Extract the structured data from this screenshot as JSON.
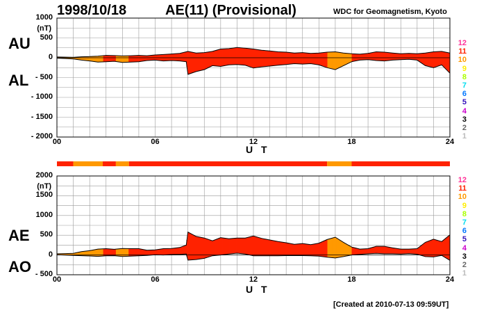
{
  "header": {
    "date": "1998/10/18",
    "index_name": "AE(11) (Provisional)",
    "institution": "WDC for Geomagnetism, Kyoto"
  },
  "footer": {
    "created": "[Created at 2010-07-13 09:59UT]"
  },
  "level_colors": {
    "12": "#ff3399",
    "11": "#ff2200",
    "10": "#ff9900",
    "9": "#ffee00",
    "8": "#aaff00",
    "7": "#00ddee",
    "6": "#0077ff",
    "5": "#3311bb",
    "4": "#cc00cc",
    "3": "#000000",
    "2": "#666666",
    "1": "#bbbbbb"
  },
  "chart_data": [
    {
      "type": "area",
      "panel": "upper",
      "series_labels": [
        "AU",
        "AL"
      ],
      "x_tick_labels": [
        "00",
        "06",
        "12",
        "18",
        "24"
      ],
      "xlabel": "U T",
      "xlim": [
        0,
        24
      ],
      "y_tick_labels": [
        "1000",
        "500",
        "0",
        "- 500",
        "- 1000",
        "- 1500",
        "- 2000"
      ],
      "yunit": "(nT)",
      "ylim": [
        -2000,
        1000
      ],
      "grid": true,
      "level_legend": [
        "12",
        "11",
        "10",
        "9",
        "8",
        "7",
        "6",
        "5",
        "4",
        "3",
        "2",
        "1"
      ],
      "x": [
        0,
        0.5,
        1,
        1.5,
        2,
        2.5,
        3,
        3.5,
        4,
        4.5,
        5,
        5.5,
        6,
        6.5,
        7,
        7.5,
        7.9,
        8,
        8.5,
        9,
        9.5,
        10,
        10.5,
        11,
        11.5,
        12,
        12.5,
        13,
        13.5,
        14,
        14.5,
        15,
        15.5,
        16,
        16.5,
        17,
        17.5,
        18,
        18.5,
        19,
        19.5,
        20,
        20.5,
        21,
        21.5,
        22,
        22.5,
        23,
        23.5,
        24
      ],
      "AU": [
        20,
        15,
        10,
        25,
        30,
        40,
        60,
        55,
        45,
        50,
        60,
        50,
        70,
        80,
        95,
        110,
        150,
        160,
        120,
        130,
        160,
        220,
        230,
        260,
        240,
        220,
        190,
        170,
        150,
        140,
        120,
        130,
        110,
        120,
        140,
        150,
        120,
        100,
        90,
        110,
        150,
        140,
        120,
        100,
        110,
        100,
        120,
        150,
        160,
        120
      ],
      "AL": [
        -10,
        -20,
        -30,
        -60,
        -80,
        -110,
        -100,
        -90,
        -120,
        -110,
        -100,
        -70,
        -60,
        -80,
        -70,
        -80,
        -100,
        -420,
        -350,
        -300,
        -200,
        -220,
        -180,
        -170,
        -190,
        -260,
        -230,
        -210,
        -190,
        -170,
        -150,
        -160,
        -150,
        -180,
        -250,
        -300,
        -200,
        -100,
        -60,
        -50,
        -70,
        -80,
        -60,
        -50,
        -40,
        -60,
        -200,
        -250,
        -180,
        -390
      ]
    },
    {
      "type": "area",
      "panel": "lower",
      "series_labels": [
        "AE",
        "AO"
      ],
      "x_tick_labels": [
        "00",
        "06",
        "12",
        "18",
        "24"
      ],
      "xlabel": "U T",
      "xlim": [
        0,
        24
      ],
      "y_tick_labels": [
        "2000",
        "1500",
        "1000",
        "500",
        "0",
        "- 500"
      ],
      "yunit": "(nT)",
      "ylim": [
        -500,
        2000
      ],
      "grid": true,
      "level_legend": [
        "12",
        "11",
        "10",
        "9",
        "8",
        "7",
        "6",
        "5",
        "4",
        "3",
        "2",
        "1"
      ],
      "x": [
        0,
        0.5,
        1,
        1.5,
        2,
        2.5,
        3,
        3.5,
        4,
        4.5,
        5,
        5.5,
        6,
        6.5,
        7,
        7.5,
        7.9,
        8,
        8.5,
        9,
        9.5,
        10,
        10.5,
        11,
        11.5,
        12,
        12.5,
        13,
        13.5,
        14,
        14.5,
        15,
        15.5,
        16,
        16.5,
        17,
        17.5,
        18,
        18.5,
        19,
        19.5,
        20,
        20.5,
        21,
        21.5,
        22,
        22.5,
        23,
        23.5,
        24
      ],
      "AE": [
        30,
        35,
        40,
        85,
        110,
        150,
        160,
        145,
        165,
        160,
        160,
        120,
        130,
        160,
        165,
        190,
        250,
        580,
        470,
        430,
        360,
        440,
        410,
        430,
        430,
        480,
        420,
        380,
        340,
        310,
        270,
        290,
        260,
        300,
        390,
        450,
        320,
        200,
        150,
        160,
        220,
        220,
        180,
        150,
        150,
        160,
        320,
        400,
        340,
        510
      ],
      "AO": [
        5,
        -3,
        -10,
        -18,
        -25,
        -35,
        -20,
        -18,
        -38,
        -30,
        -20,
        -10,
        5,
        0,
        12,
        15,
        25,
        -130,
        -115,
        -85,
        -20,
        0,
        25,
        45,
        25,
        -20,
        -20,
        -20,
        -20,
        -15,
        -15,
        -15,
        -20,
        -30,
        -55,
        -75,
        -40,
        0,
        15,
        30,
        40,
        30,
        30,
        25,
        35,
        20,
        -40,
        -50,
        -10,
        -135
      ]
    }
  ],
  "activity_bar": {
    "segments": [
      {
        "from": 0,
        "to": 1,
        "level": "11"
      },
      {
        "from": 1,
        "to": 2.8,
        "level": "10"
      },
      {
        "from": 2.8,
        "to": 3.6,
        "level": "11"
      },
      {
        "from": 3.6,
        "to": 4.4,
        "level": "10"
      },
      {
        "from": 4.4,
        "to": 16.5,
        "level": "11"
      },
      {
        "from": 16.5,
        "to": 18,
        "level": "10"
      },
      {
        "from": 18,
        "to": 24,
        "level": "11"
      }
    ]
  },
  "fill_levels": [
    {
      "from": 0,
      "to": 2.8,
      "level": "10"
    },
    {
      "from": 2.8,
      "to": 3.6,
      "level": "11"
    },
    {
      "from": 3.6,
      "to": 4.4,
      "level": "10"
    },
    {
      "from": 4.4,
      "to": 16.5,
      "level": "11"
    },
    {
      "from": 16.5,
      "to": 18,
      "level": "10"
    },
    {
      "from": 18,
      "to": 24,
      "level": "11"
    }
  ]
}
